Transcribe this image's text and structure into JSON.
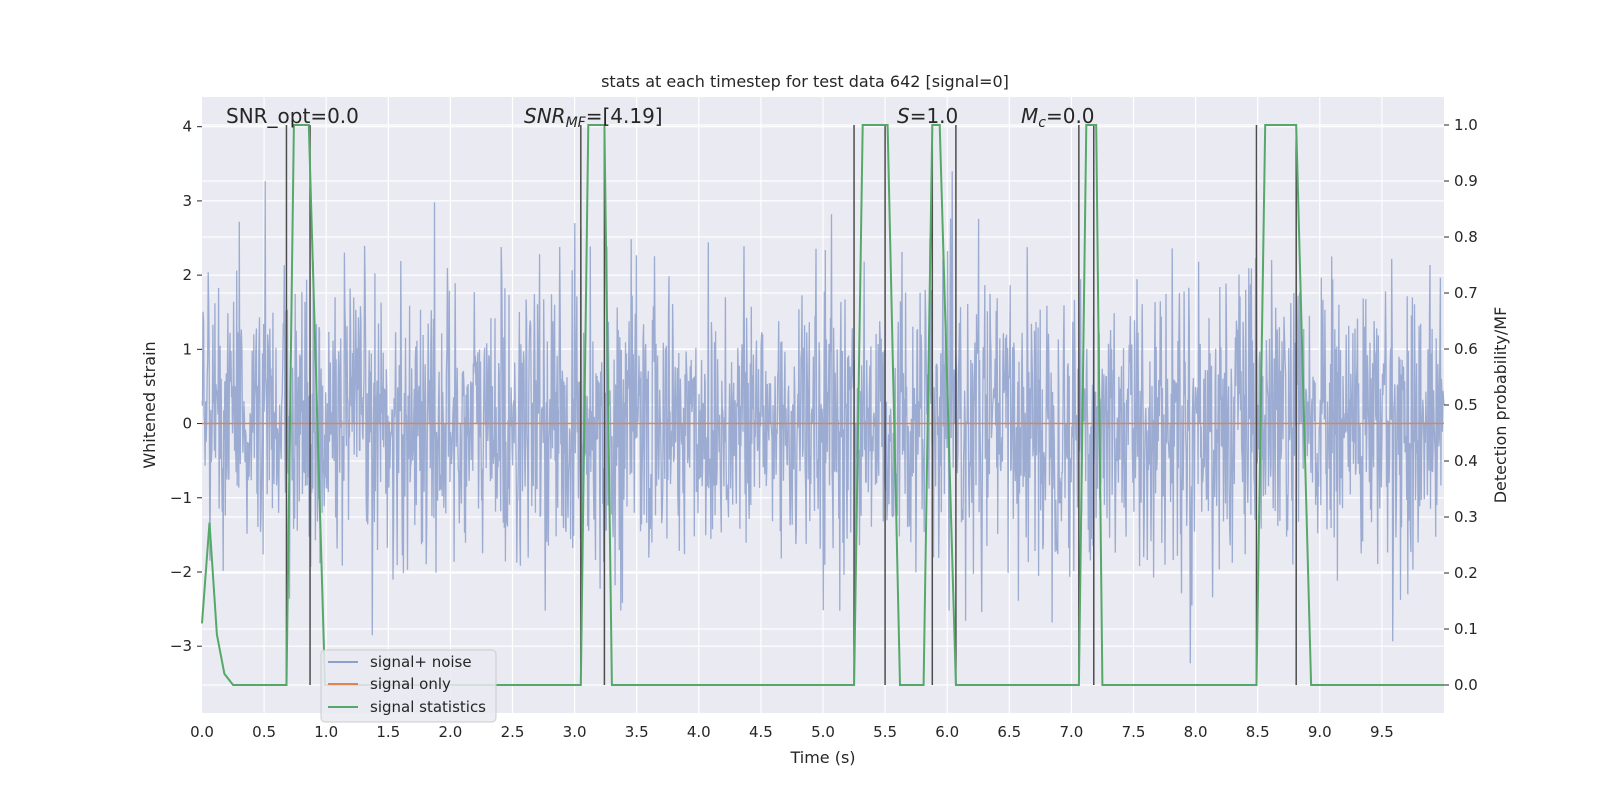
{
  "chart_data": {
    "type": "line",
    "title": "stats at each timestep for test data 642 [signal=0]",
    "xlabel": "Time (s)",
    "ylabel": "Whitened strain",
    "y2label": "Detection probability/MF",
    "xlim": [
      0,
      10
    ],
    "ylim": [
      -3.9,
      4.4
    ],
    "y2lim": [
      -0.05,
      1.05
    ],
    "x_ticks": [
      "0.0",
      "0.5",
      "1.0",
      "1.5",
      "2.0",
      "2.5",
      "3.0",
      "3.5",
      "4.0",
      "4.5",
      "5.0",
      "5.5",
      "6.0",
      "6.5",
      "7.0",
      "7.5",
      "8.0",
      "8.5",
      "9.0",
      "9.5"
    ],
    "y_ticks": [
      "4",
      "3",
      "2",
      "1",
      "0",
      "−1",
      "−2",
      "−3"
    ],
    "y2_ticks": [
      "1.0",
      "0.9",
      "0.8",
      "0.7",
      "0.6",
      "0.5",
      "0.4",
      "0.3",
      "0.2",
      "0.1",
      "0.0"
    ],
    "grid": true,
    "legend_position": "lower-left",
    "annotations": {
      "snr_opt": "SNR_opt=0.0",
      "snr_mf_base": "SNR",
      "snr_mf_sub": "MF",
      "snr_mf_tail": "=[4.19]",
      "s_base": "S",
      "s_tail": "=1.0",
      "mc_base": "M",
      "mc_sub": "c",
      "mc_tail": "=0.0"
    },
    "series": [
      {
        "name": "signal+ noise",
        "color": "#8da0cb",
        "axis": "left",
        "description": "whitened noise, amplitude roughly ±2 with spikes to about ±3.5",
        "envelope": [
          -1.3,
          1.6
        ],
        "extremes": [
          -3.5,
          3.4
        ]
      },
      {
        "name": "signal only",
        "color": "#dd8452",
        "axis": "left",
        "x": [
          0,
          10
        ],
        "y": [
          0,
          0
        ]
      },
      {
        "name": "signal statistics",
        "color": "#55a868",
        "axis": "right",
        "x": [
          0.0,
          0.06,
          0.12,
          0.18,
          0.25,
          0.68,
          0.74,
          0.86,
          0.99,
          1.05,
          3.05,
          3.11,
          3.24,
          3.3,
          5.25,
          5.32,
          5.52,
          5.62,
          5.81,
          5.88,
          5.94,
          6.07,
          6.12,
          7.06,
          7.12,
          7.2,
          7.25,
          8.49,
          8.56,
          8.81,
          8.93,
          10.0
        ],
        "y": [
          0.11,
          0.29,
          0.09,
          0.02,
          0.0,
          0.0,
          1.0,
          1.0,
          0.0,
          0.0,
          0.0,
          1.0,
          1.0,
          0.0,
          0.0,
          1.0,
          1.0,
          0.0,
          0.0,
          1.0,
          1.0,
          0.0,
          0.0,
          0.0,
          1.0,
          1.0,
          0.0,
          0.0,
          1.0,
          1.0,
          0.0,
          0.0
        ]
      }
    ],
    "vertical_lines": {
      "color": "#4d4d4d",
      "x": [
        0.68,
        0.87,
        3.05,
        3.24,
        5.25,
        5.5,
        5.88,
        6.07,
        7.06,
        7.18,
        8.49,
        8.81
      ]
    }
  }
}
